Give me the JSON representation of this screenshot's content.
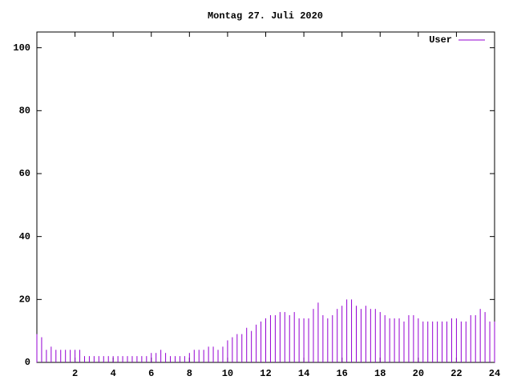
{
  "chart_data": {
    "type": "impulses",
    "title": "Montag 27. Juli 2020",
    "x": [
      0,
      0.25,
      0.5,
      0.75,
      1,
      1.25,
      1.5,
      1.75,
      2,
      2.25,
      2.5,
      2.75,
      3,
      3.25,
      3.5,
      3.75,
      4,
      4.25,
      4.5,
      4.75,
      5,
      5.25,
      5.5,
      5.75,
      6,
      6.25,
      6.5,
      6.75,
      7,
      7.25,
      7.5,
      7.75,
      8,
      8.25,
      8.5,
      8.75,
      9,
      9.25,
      9.5,
      9.75,
      10,
      10.25,
      10.5,
      10.75,
      11,
      11.25,
      11.5,
      11.75,
      12,
      12.25,
      12.5,
      12.75,
      13,
      13.25,
      13.5,
      13.75,
      14,
      14.25,
      14.5,
      14.75,
      15,
      15.25,
      15.5,
      15.75,
      16,
      16.25,
      16.5,
      16.75,
      17,
      17.25,
      17.5,
      17.75,
      18,
      18.25,
      18.5,
      18.75,
      19,
      19.25,
      19.5,
      19.75,
      20,
      20.25,
      20.5,
      20.75,
      21,
      21.25,
      21.5,
      21.75,
      22,
      22.25,
      22.5,
      22.75,
      23,
      23.25,
      23.5,
      23.75,
      24
    ],
    "series": [
      {
        "name": "User",
        "color": "#9400d3",
        "values": [
          9,
          8,
          4,
          5,
          4,
          4,
          4,
          4,
          4,
          4,
          2,
          2,
          2,
          2,
          2,
          2,
          2,
          2,
          2,
          2,
          2,
          2,
          2,
          2,
          3,
          3,
          4,
          3,
          2,
          2,
          2,
          2,
          3,
          4,
          4,
          4,
          5,
          5,
          4,
          5,
          7,
          8,
          9,
          9,
          11,
          10,
          12,
          13,
          14,
          15,
          15,
          16,
          16,
          15,
          16,
          14,
          14,
          14,
          17,
          19,
          15,
          14,
          15,
          17,
          18,
          20,
          20,
          18,
          17,
          18,
          17,
          17,
          16,
          15,
          14,
          14,
          14,
          13,
          15,
          15,
          14,
          13,
          13,
          13,
          13,
          13,
          13,
          14,
          14,
          13,
          13,
          15,
          15,
          17,
          16,
          13,
          13
        ]
      }
    ],
    "xlim": [
      0,
      24
    ],
    "xticks": [
      2,
      4,
      6,
      8,
      10,
      12,
      14,
      16,
      18,
      20,
      22,
      24
    ],
    "ylim": [
      0,
      105
    ],
    "yticks": [
      0,
      20,
      40,
      60,
      80,
      100
    ],
    "legend": "top-right"
  }
}
